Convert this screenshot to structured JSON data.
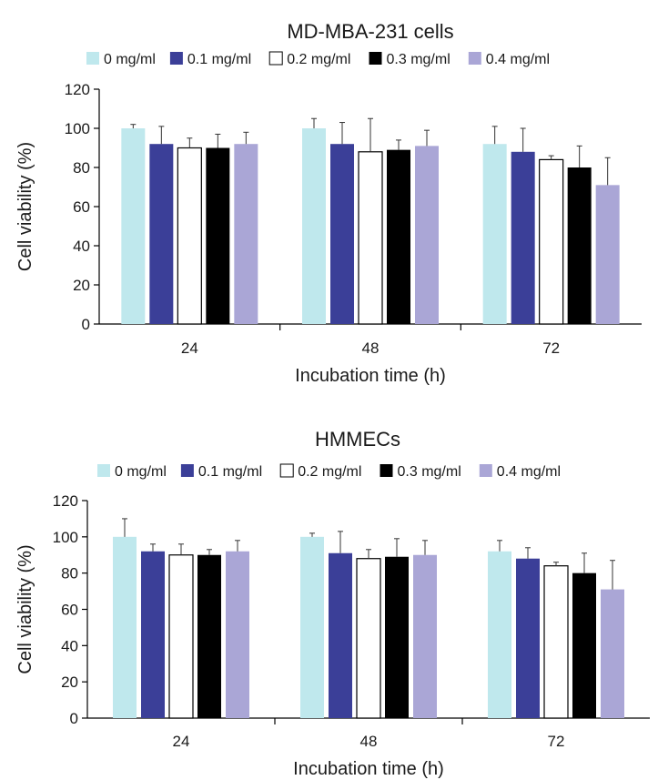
{
  "chart_data": [
    {
      "type": "bar",
      "title": "MD-MBA-231 cells",
      "xlabel": "Incubation time (h)",
      "ylabel": "Cell viability (%)",
      "categories": [
        "24",
        "48",
        "72"
      ],
      "ylim": [
        0,
        120
      ],
      "yticks": [
        0,
        20,
        40,
        60,
        80,
        100,
        120
      ],
      "error_bars": true,
      "legend_position": "top",
      "series": [
        {
          "name": "0 mg/ml",
          "color": "#bfe8ed",
          "values": [
            100,
            100,
            92
          ],
          "errors": [
            2,
            5,
            9
          ]
        },
        {
          "name": "0.1 mg/ml",
          "color": "#3b3f98",
          "values": [
            92,
            92,
            88
          ],
          "errors": [
            9,
            11,
            12
          ]
        },
        {
          "name": "0.2 mg/ml",
          "color": "#ffffff",
          "values": [
            90,
            88,
            84
          ],
          "errors": [
            5,
            17,
            2
          ]
        },
        {
          "name": "0.3 mg/ml",
          "color": "#000000",
          "values": [
            90,
            89,
            80
          ],
          "errors": [
            7,
            5,
            11
          ]
        },
        {
          "name": "0.4 mg/ml",
          "color": "#aaa6d6",
          "values": [
            92,
            91,
            71
          ],
          "errors": [
            6,
            8,
            14
          ]
        }
      ]
    },
    {
      "type": "bar",
      "title": "HMMECs",
      "xlabel": "Incubation time (h)",
      "ylabel": "Cell viability (%)",
      "categories": [
        "24",
        "48",
        "72"
      ],
      "ylim": [
        0,
        120
      ],
      "yticks": [
        0,
        20,
        40,
        60,
        80,
        100,
        120
      ],
      "error_bars": true,
      "legend_position": "top",
      "series": [
        {
          "name": "0 mg/ml",
          "color": "#bfe8ed",
          "values": [
            100,
            100,
            92
          ],
          "errors": [
            10,
            2,
            6
          ]
        },
        {
          "name": "0.1 mg/ml",
          "color": "#3b3f98",
          "values": [
            92,
            91,
            88
          ],
          "errors": [
            4,
            12,
            6
          ]
        },
        {
          "name": "0.2 mg/ml",
          "color": "#ffffff",
          "values": [
            90,
            88,
            84
          ],
          "errors": [
            6,
            5,
            2
          ]
        },
        {
          "name": "0.3 mg/ml",
          "color": "#000000",
          "values": [
            90,
            89,
            80
          ],
          "errors": [
            3,
            10,
            11
          ]
        },
        {
          "name": "0.4 mg/ml",
          "color": "#aaa6d6",
          "values": [
            92,
            90,
            71
          ],
          "errors": [
            6,
            8,
            16
          ]
        }
      ]
    }
  ]
}
